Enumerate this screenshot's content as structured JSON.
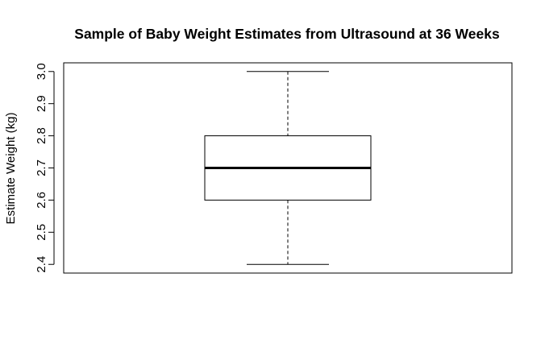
{
  "chart_data": {
    "type": "box",
    "title": "Sample of Baby Weight Estimates from Ultrasound at 36 Weeks",
    "xlabel": "",
    "ylabel": "Estimate Weight (kg)",
    "ylim": [
      2.373,
      3.027
    ],
    "yticks": [
      "2.4",
      "2.5",
      "2.6",
      "2.7",
      "2.8",
      "2.9",
      "3.0"
    ],
    "grid": false,
    "legend": "none",
    "series": [
      {
        "min": 2.4,
        "q1": 2.6,
        "median": 2.7,
        "q3": 2.8,
        "max": 3.0
      }
    ],
    "colors": {
      "box_fill": "#ffffff",
      "stroke": "#000000"
    }
  }
}
